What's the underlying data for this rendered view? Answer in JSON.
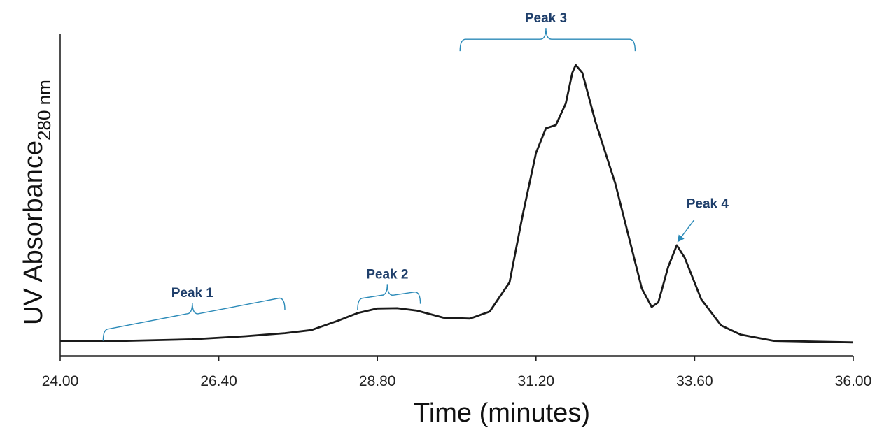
{
  "chart_data": {
    "type": "line",
    "title": "",
    "xlabel": "Time (minutes)",
    "ylabel": {
      "main": "UV Absorbance",
      "subscript": "280 nm"
    },
    "xlim": [
      24.0,
      36.0
    ],
    "ylim": [
      0,
      100
    ],
    "x_ticks": [
      "24.00",
      "26.40",
      "28.80",
      "31.20",
      "33.60",
      "36.00"
    ],
    "grid": false,
    "legend": "none",
    "series": [
      {
        "color": "#1a1a1a",
        "points": [
          [
            24.0,
            1.0
          ],
          [
            25.0,
            1.0
          ],
          [
            26.0,
            1.5
          ],
          [
            26.8,
            2.5
          ],
          [
            27.4,
            3.5
          ],
          [
            27.8,
            4.5
          ],
          [
            28.2,
            7.5
          ],
          [
            28.5,
            10.0
          ],
          [
            28.8,
            11.5
          ],
          [
            29.1,
            11.6
          ],
          [
            29.4,
            10.8
          ],
          [
            29.8,
            8.5
          ],
          [
            30.2,
            8.2
          ],
          [
            30.5,
            10.5
          ],
          [
            30.8,
            20.0
          ],
          [
            31.0,
            42.0
          ],
          [
            31.2,
            62.0
          ],
          [
            31.35,
            70.0
          ],
          [
            31.5,
            71.0
          ],
          [
            31.65,
            78.0
          ],
          [
            31.75,
            88.0
          ],
          [
            31.8,
            90.5
          ],
          [
            31.9,
            88.0
          ],
          [
            32.1,
            72.0
          ],
          [
            32.4,
            52.0
          ],
          [
            32.8,
            18.0
          ],
          [
            32.95,
            12.0
          ],
          [
            33.05,
            13.5
          ],
          [
            33.2,
            25.0
          ],
          [
            33.33,
            32.0
          ],
          [
            33.45,
            28.0
          ],
          [
            33.7,
            14.5
          ],
          [
            34.0,
            6.0
          ],
          [
            34.3,
            3.0
          ],
          [
            34.8,
            1.0
          ],
          [
            36.0,
            0.5
          ]
        ]
      }
    ],
    "annotations": [
      {
        "label": "Peak 1",
        "x_from": 24.65,
        "x_to": 27.4,
        "label_x": 26.0,
        "bracket_left_y": 1.0,
        "bracket_right_y": 11.0
      },
      {
        "label": "Peak 2",
        "x_from": 28.5,
        "x_to": 29.45,
        "label_x": 28.95,
        "bracket_left_y": 11.0,
        "bracket_right_y": 13.0
      },
      {
        "label": "Peak 3",
        "x_from": 30.05,
        "x_to": 32.7,
        "label_x": 31.35,
        "bracket_left_y": 95.0,
        "bracket_right_y": 95.0
      },
      {
        "label": "Peak 4",
        "arrow_to_x": 33.33,
        "arrow_to_y": 32.0,
        "label_x": 33.7,
        "label_y": 43.0
      }
    ],
    "annotation_color": "#2b8ab8"
  }
}
